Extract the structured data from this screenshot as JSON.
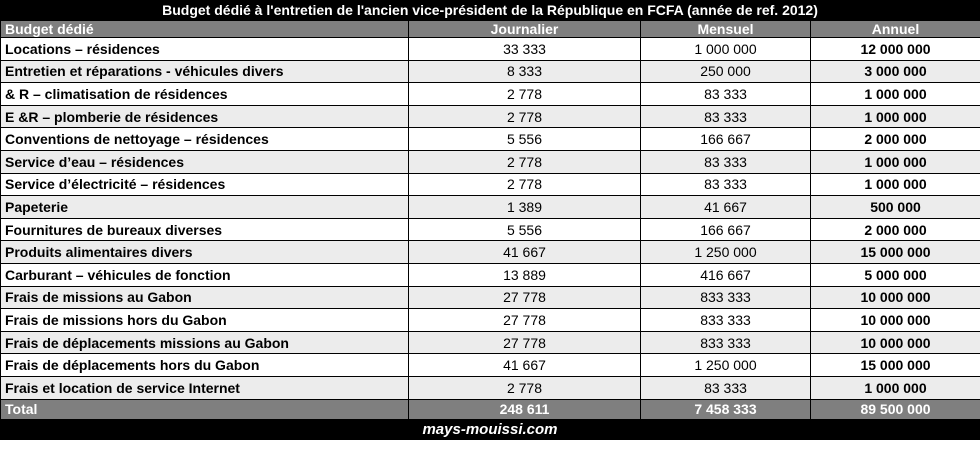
{
  "title": "Budget dédié à l'entretien de l'ancien vice-président de la République en FCFA (année de ref. 2012)",
  "columns": [
    "Budget dédié",
    "Journalier",
    "Mensuel",
    "Annuel"
  ],
  "rows": [
    {
      "label": "Locations – résidences",
      "journalier": "33 333",
      "mensuel": "1 000 000",
      "annuel": "12 000 000"
    },
    {
      "label": "Entretien et réparations - véhicules divers",
      "journalier": "8 333",
      "mensuel": "250 000",
      "annuel": "3 000 000"
    },
    {
      "label": "& R – climatisation de résidences",
      "journalier": "2 778",
      "mensuel": "83 333",
      "annuel": "1 000 000"
    },
    {
      "label": "E &R – plomberie de résidences",
      "journalier": "2 778",
      "mensuel": "83 333",
      "annuel": "1 000 000"
    },
    {
      "label": "Conventions de nettoyage – résidences",
      "journalier": "5 556",
      "mensuel": "166 667",
      "annuel": "2 000 000"
    },
    {
      "label": "Service d’eau – résidences",
      "journalier": "2 778",
      "mensuel": "83 333",
      "annuel": "1 000 000"
    },
    {
      "label": "Service d’électricité – résidences",
      "journalier": "2 778",
      "mensuel": "83 333",
      "annuel": "1 000 000"
    },
    {
      "label": "Papeterie",
      "journalier": "1 389",
      "mensuel": "41 667",
      "annuel": "500 000"
    },
    {
      "label": "Fournitures de bureaux diverses",
      "journalier": "5 556",
      "mensuel": "166 667",
      "annuel": "2 000 000"
    },
    {
      "label": "Produits alimentaires divers",
      "journalier": "41 667",
      "mensuel": "1 250 000",
      "annuel": "15 000 000"
    },
    {
      "label": "Carburant – véhicules de fonction",
      "journalier": "13 889",
      "mensuel": "416 667",
      "annuel": "5 000 000"
    },
    {
      "label": "Frais de missions au Gabon",
      "journalier": "27 778",
      "mensuel": "833 333",
      "annuel": "10 000 000"
    },
    {
      "label": "Frais de missions hors du Gabon",
      "journalier": "27 778",
      "mensuel": "833 333",
      "annuel": "10 000 000"
    },
    {
      "label": "Frais de déplacements missions au Gabon",
      "journalier": "27 778",
      "mensuel": "833 333",
      "annuel": "10 000 000"
    },
    {
      "label": "Frais de déplacements hors du Gabon",
      "journalier": "41 667",
      "mensuel": "1 250 000",
      "annuel": "15 000 000"
    },
    {
      "label": "Frais et location de service Internet",
      "journalier": "2 778",
      "mensuel": "83 333",
      "annuel": "1 000 000"
    }
  ],
  "total": {
    "label": "Total",
    "journalier": "248 611",
    "mensuel": "7 458 333",
    "annuel": "89 500 000"
  },
  "footer": "mays-mouissi.com",
  "colors": {
    "header_bg": "#7f7f7f",
    "bar_bg": "#000000",
    "stripe": "#ececec"
  }
}
